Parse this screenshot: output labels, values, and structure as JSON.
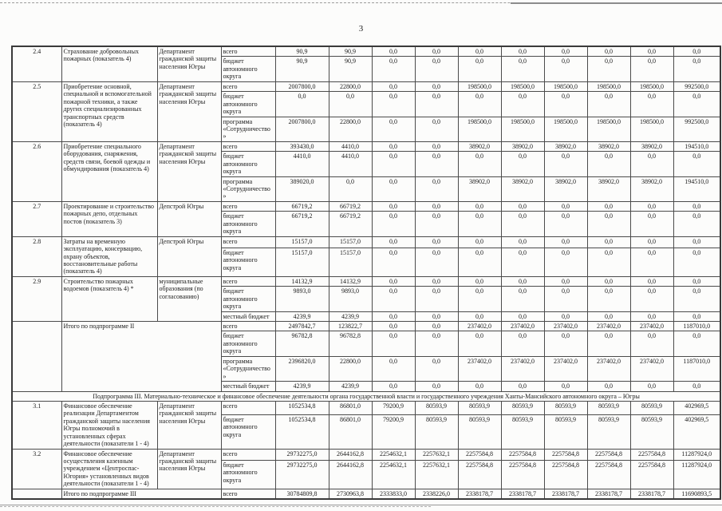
{
  "page": {
    "number": "3"
  },
  "table": {
    "rows": [
      {
        "num": "2.4",
        "name": "Страхование добровольных пожарных (показатель 4)",
        "executor": "Департамент гражданской защиты населения Югры",
        "lines": [
          {
            "source": "всего",
            "values": [
              "90,9",
              "90,9",
              "0,0",
              "0,0",
              "0,0",
              "0,0",
              "0,0",
              "0,0",
              "0,0",
              "0,0"
            ]
          },
          {
            "source": "бюджет автономного округа",
            "values": [
              "90,9",
              "90,9",
              "0,0",
              "0,0",
              "0,0",
              "0,0",
              "0,0",
              "0,0",
              "0,0",
              "0,0"
            ]
          }
        ]
      },
      {
        "num": "2.5",
        "name": "Приобретение основной, специальной и вспомогательной пожарной техники, а также других специализированных транспортных средств (показатель 4)",
        "executor": "Департамент гражданской защиты населения Югры",
        "lines": [
          {
            "source": "всего",
            "values": [
              "2007800,0",
              "22800,0",
              "0,0",
              "0,0",
              "198500,0",
              "198500,0",
              "198500,0",
              "198500,0",
              "198500,0",
              "992500,0"
            ]
          },
          {
            "source": "бюджет автономного округа",
            "values": [
              "0,0",
              "0,0",
              "0,0",
              "0,0",
              "0,0",
              "0,0",
              "0,0",
              "0,0",
              "0,0",
              "0,0"
            ]
          },
          {
            "source": "программа «Сотрудничество»",
            "values": [
              "2007800,0",
              "22800,0",
              "0,0",
              "0,0",
              "198500,0",
              "198500,0",
              "198500,0",
              "198500,0",
              "198500,0",
              "992500,0"
            ]
          }
        ]
      },
      {
        "num": "2.6",
        "name": "Приобретение специального оборудования, снаряжения, средств связи, боевой одежды и обмундирования (показатель 4)",
        "executor": "Департамент гражданской защиты населения Югры",
        "lines": [
          {
            "source": "всего",
            "values": [
              "393430,0",
              "4410,0",
              "0,0",
              "0,0",
              "38902,0",
              "38902,0",
              "38902,0",
              "38902,0",
              "38902,0",
              "194510,0"
            ]
          },
          {
            "source": "бюджет автономного округа",
            "values": [
              "4410,0",
              "4410,0",
              "0,0",
              "0,0",
              "0,0",
              "0,0",
              "0,0",
              "0,0",
              "0,0",
              "0,0"
            ]
          },
          {
            "source": "программа «Сотрудничество»",
            "values": [
              "389020,0",
              "0,0",
              "0,0",
              "0,0",
              "38902,0",
              "38902,0",
              "38902,0",
              "38902,0",
              "38902,0",
              "194510,0"
            ]
          }
        ]
      },
      {
        "num": "2.7",
        "name": "Проектирование и строительство пожарных депо, отдельных постов (показатель 3)",
        "executor": "Депстрой Югры",
        "lines": [
          {
            "source": "всего",
            "values": [
              "66719,2",
              "66719,2",
              "0,0",
              "0,0",
              "0,0",
              "0,0",
              "0,0",
              "0,0",
              "0,0",
              "0,0"
            ]
          },
          {
            "source": "бюджет автономного округа",
            "values": [
              "66719,2",
              "66719,2",
              "0,0",
              "0,0",
              "0,0",
              "0,0",
              "0,0",
              "0,0",
              "0,0",
              "0,0"
            ]
          }
        ]
      },
      {
        "num": "2.8",
        "name": "Затраты на временную эксплуатацию, консервацию, охрану объектов, восстановительные работы (показатель 4)",
        "executor": "Депстрой Югры",
        "lines": [
          {
            "source": "всего",
            "values": [
              "15157,0",
              "15157,0",
              "0,0",
              "0,0",
              "0,0",
              "0,0",
              "0,0",
              "0,0",
              "0,0",
              "0,0"
            ]
          },
          {
            "source": "бюджет автономного округа",
            "values": [
              "15157,0",
              "15157,0",
              "0,0",
              "0,0",
              "0,0",
              "0,0",
              "0,0",
              "0,0",
              "0,0",
              "0,0"
            ]
          }
        ]
      },
      {
        "num": "2.9",
        "name": "Строительство пожарных водоемов (показатель 4) *",
        "executor": "муниципальные образования (по согласованию)",
        "lines": [
          {
            "source": "всего",
            "values": [
              "14132,9",
              "14132,9",
              "0,0",
              "0,0",
              "0,0",
              "0,0",
              "0,0",
              "0,0",
              "0,0",
              "0,0"
            ]
          },
          {
            "source": "бюджет автономного округа",
            "values": [
              "9893,0",
              "9893,0",
              "0,0",
              "0,0",
              "0,0",
              "0,0",
              "0,0",
              "0,0",
              "0,0",
              "0,0"
            ]
          },
          {
            "source": "местный бюджет",
            "values": [
              "4239,9",
              "4239,9",
              "0,0",
              "0,0",
              "0,0",
              "0,0",
              "0,0",
              "0,0",
              "0,0",
              "0,0"
            ]
          }
        ]
      },
      {
        "num": "",
        "name": "Итого по подпрограмме II",
        "total": true,
        "lines": [
          {
            "source": "всего",
            "values": [
              "2497842,7",
              "123822,7",
              "0,0",
              "0,0",
              "237402,0",
              "237402,0",
              "237402,0",
              "237402,0",
              "237402,0",
              "1187010,0"
            ]
          },
          {
            "source": "бюджет автономного округа",
            "values": [
              "96782,8",
              "96782,8",
              "0,0",
              "0,0",
              "0,0",
              "0,0",
              "0,0",
              "0,0",
              "0,0",
              "0,0"
            ]
          },
          {
            "source": "программа «Сотрудничество»",
            "values": [
              "2396820,0",
              "22800,0",
              "0,0",
              "0,0",
              "237402,0",
              "237402,0",
              "237402,0",
              "237402,0",
              "237402,0",
              "1187010,0"
            ]
          },
          {
            "source": "местный бюджет",
            "values": [
              "4239,9",
              "4239,9",
              "0,0",
              "0,0",
              "0,0",
              "0,0",
              "0,0",
              "0,0",
              "0,0",
              "0,0"
            ]
          }
        ]
      },
      {
        "section": "Подпрограмма III. Материально-техническое и финансовое обеспечение деятельности органа государственной власти и государственного учреждения Ханты-Мансийского автономного округа – Югры"
      },
      {
        "num": "3.1",
        "name": "Финансовое обеспечение реализации Департаментом гражданской защиты населения Югры полномочий в установленных сферах деятельности (показатели 1 - 4)",
        "executor": "Департамент гражданской защиты населения Югры",
        "lines": [
          {
            "source": "всего",
            "values": [
              "1052534,8",
              "86801,0",
              "79200,9",
              "80593,9",
              "80593,9",
              "80593,9",
              "80593,9",
              "80593,9",
              "80593,9",
              "402969,5"
            ]
          },
          {
            "source": "бюджет автономного округа",
            "values": [
              "1052534,8",
              "86801,0",
              "79200,9",
              "80593,9",
              "80593,9",
              "80593,9",
              "80593,9",
              "80593,9",
              "80593,9",
              "402969,5"
            ]
          }
        ]
      },
      {
        "num": "3.2",
        "name": "Финансовое обеспечение осуществления казенным учреждением «Центроспас-Югория» установленных видов деятельности (показатели 1 - 4)",
        "executor": "Департамент гражданской защиты населения Югры",
        "lines": [
          {
            "source": "всего",
            "values": [
              "29732275,0",
              "2644162,8",
              "2254632,1",
              "2257632,1",
              "2257584,8",
              "2257584,8",
              "2257584,8",
              "2257584,8",
              "2257584,8",
              "11287924,0"
            ]
          },
          {
            "source": "бюджет автономного округа",
            "values": [
              "29732275,0",
              "2644162,8",
              "2254632,1",
              "2257632,1",
              "2257584,8",
              "2257584,8",
              "2257584,8",
              "2257584,8",
              "2257584,8",
              "11287924,0"
            ]
          }
        ]
      },
      {
        "num": "",
        "name": "Итого по подпрограмме III",
        "total": true,
        "lines": [
          {
            "source": "всего",
            "values": [
              "30784809,8",
              "2730963,8",
              "2333833,0",
              "2338226,0",
              "2338178,7",
              "2338178,7",
              "2338178,7",
              "2338178,7",
              "2338178,7",
              "11690893,5"
            ]
          }
        ]
      }
    ]
  }
}
